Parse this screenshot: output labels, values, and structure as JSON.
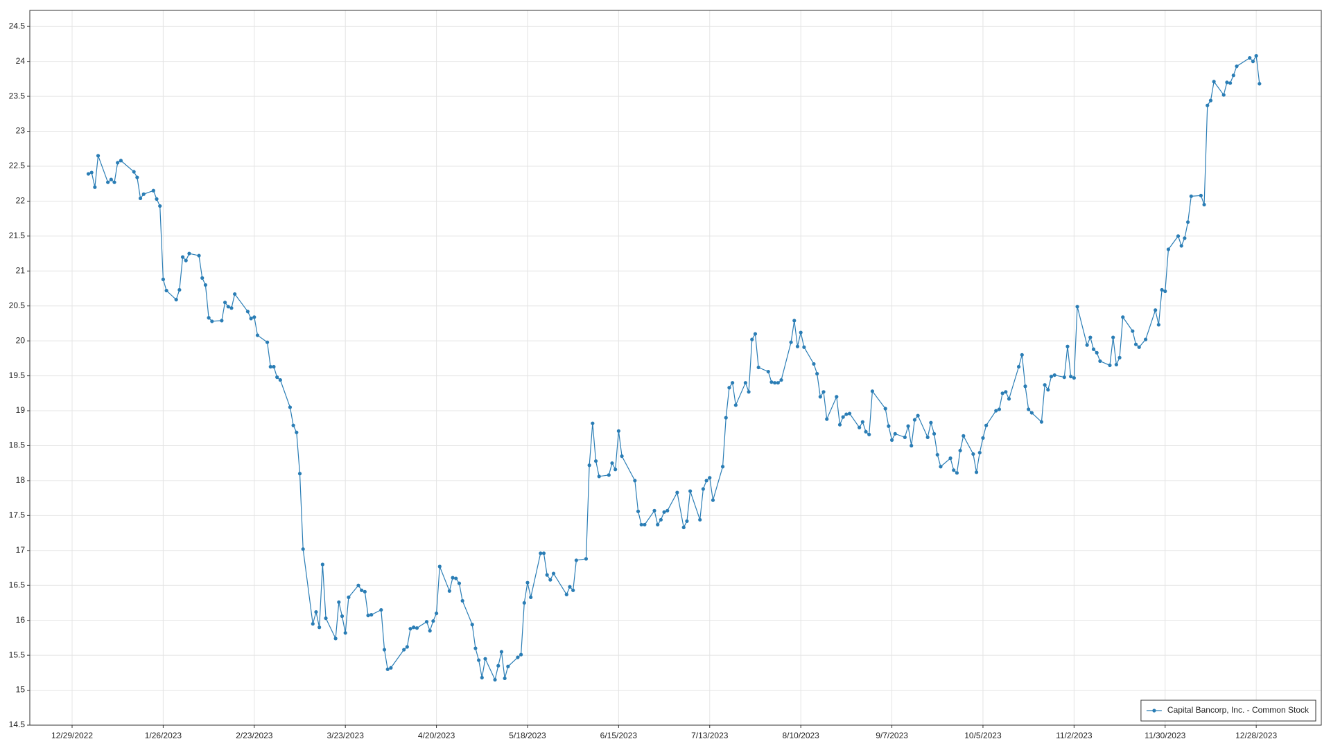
{
  "chart_data": {
    "type": "line",
    "x": [
      "1/3/2023",
      "1/4/2023",
      "1/5/2023",
      "1/6/2023",
      "1/9/2023",
      "1/10/2023",
      "1/11/2023",
      "1/12/2023",
      "1/13/2023",
      "1/17/2023",
      "1/18/2023",
      "1/19/2023",
      "1/20/2023",
      "1/23/2023",
      "1/24/2023",
      "1/25/2023",
      "1/26/2023",
      "1/27/2023",
      "1/30/2023",
      "1/31/2023",
      "2/1/2023",
      "2/2/2023",
      "2/3/2023",
      "2/6/2023",
      "2/7/2023",
      "2/8/2023",
      "2/9/2023",
      "2/10/2023",
      "2/13/2023",
      "2/14/2023",
      "2/15/2023",
      "2/16/2023",
      "2/17/2023",
      "2/21/2023",
      "2/22/2023",
      "2/23/2023",
      "2/24/2023",
      "2/27/2023",
      "2/28/2023",
      "3/1/2023",
      "3/2/2023",
      "3/3/2023",
      "3/6/2023",
      "3/7/2023",
      "3/8/2023",
      "3/9/2023",
      "3/10/2023",
      "3/13/2023",
      "3/14/2023",
      "3/15/2023",
      "3/16/2023",
      "3/17/2023",
      "3/20/2023",
      "3/21/2023",
      "3/22/2023",
      "3/23/2023",
      "3/24/2023",
      "3/27/2023",
      "3/28/2023",
      "3/29/2023",
      "3/30/2023",
      "3/31/2023",
      "4/3/2023",
      "4/4/2023",
      "4/5/2023",
      "4/6/2023",
      "4/10/2023",
      "4/11/2023",
      "4/12/2023",
      "4/13/2023",
      "4/14/2023",
      "4/17/2023",
      "4/18/2023",
      "4/19/2023",
      "4/20/2023",
      "4/21/2023",
      "4/24/2023",
      "4/25/2023",
      "4/26/2023",
      "4/27/2023",
      "4/28/2023",
      "5/1/2023",
      "5/2/2023",
      "5/3/2023",
      "5/4/2023",
      "5/5/2023",
      "5/8/2023",
      "5/9/2023",
      "5/10/2023",
      "5/11/2023",
      "5/12/2023",
      "5/15/2023",
      "5/16/2023",
      "5/17/2023",
      "5/18/2023",
      "5/19/2023",
      "5/22/2023",
      "5/23/2023",
      "5/24/2023",
      "5/25/2023",
      "5/26/2023",
      "5/30/2023",
      "5/31/2023",
      "6/1/2023",
      "6/2/2023",
      "6/5/2023",
      "6/6/2023",
      "6/7/2023",
      "6/8/2023",
      "6/9/2023",
      "6/12/2023",
      "6/13/2023",
      "6/14/2023",
      "6/15/2023",
      "6/16/2023",
      "6/20/2023",
      "6/21/2023",
      "6/22/2023",
      "6/23/2023",
      "6/26/2023",
      "6/27/2023",
      "6/28/2023",
      "6/29/2023",
      "6/30/2023",
      "7/3/2023",
      "7/5/2023",
      "7/6/2023",
      "7/7/2023",
      "7/10/2023",
      "7/11/2023",
      "7/12/2023",
      "7/13/2023",
      "7/14/2023",
      "7/17/2023",
      "7/18/2023",
      "7/19/2023",
      "7/20/2023",
      "7/21/2023",
      "7/24/2023",
      "7/25/2023",
      "7/26/2023",
      "7/27/2023",
      "7/28/2023",
      "7/31/2023",
      "8/1/2023",
      "8/2/2023",
      "8/3/2023",
      "8/4/2023",
      "8/7/2023",
      "8/8/2023",
      "8/9/2023",
      "8/10/2023",
      "8/11/2023",
      "8/14/2023",
      "8/15/2023",
      "8/16/2023",
      "8/17/2023",
      "8/18/2023",
      "8/21/2023",
      "8/22/2023",
      "8/23/2023",
      "8/24/2023",
      "8/25/2023",
      "8/28/2023",
      "8/29/2023",
      "8/30/2023",
      "8/31/2023",
      "9/1/2023",
      "9/5/2023",
      "9/6/2023",
      "9/7/2023",
      "9/8/2023",
      "9/11/2023",
      "9/12/2023",
      "9/13/2023",
      "9/14/2023",
      "9/15/2023",
      "9/18/2023",
      "9/19/2023",
      "9/20/2023",
      "9/21/2023",
      "9/22/2023",
      "9/25/2023",
      "9/26/2023",
      "9/27/2023",
      "9/28/2023",
      "9/29/2023",
      "10/2/2023",
      "10/3/2023",
      "10/4/2023",
      "10/5/2023",
      "10/6/2023",
      "10/9/2023",
      "10/10/2023",
      "10/11/2023",
      "10/12/2023",
      "10/13/2023",
      "10/16/2023",
      "10/17/2023",
      "10/18/2023",
      "10/19/2023",
      "10/20/2023",
      "10/23/2023",
      "10/24/2023",
      "10/25/2023",
      "10/26/2023",
      "10/27/2023",
      "10/30/2023",
      "10/31/2023",
      "11/1/2023",
      "11/2/2023",
      "11/3/2023",
      "11/6/2023",
      "11/7/2023",
      "11/8/2023",
      "11/9/2023",
      "11/10/2023",
      "11/13/2023",
      "11/14/2023",
      "11/15/2023",
      "11/16/2023",
      "11/17/2023",
      "11/20/2023",
      "11/21/2023",
      "11/22/2023",
      "11/24/2023",
      "11/27/2023",
      "11/28/2023",
      "11/29/2023",
      "11/30/2023",
      "12/1/2023",
      "12/4/2023",
      "12/5/2023",
      "12/6/2023",
      "12/7/2023",
      "12/8/2023",
      "12/11/2023",
      "12/12/2023",
      "12/13/2023",
      "12/14/2023",
      "12/15/2023",
      "12/18/2023",
      "12/19/2023",
      "12/20/2023",
      "12/21/2023",
      "12/22/2023",
      "12/26/2023",
      "12/27/2023",
      "12/28/2023",
      "12/29/2023"
    ],
    "series": [
      {
        "name": "Capital Bancorp, Inc. - Common Stock",
        "color": "#2a7db5",
        "values": [
          22.39,
          22.41,
          22.2,
          22.65,
          22.27,
          22.31,
          22.27,
          22.55,
          22.58,
          22.42,
          22.34,
          22.04,
          22.1,
          22.15,
          22.03,
          21.93,
          20.88,
          20.72,
          20.59,
          20.73,
          21.2,
          21.15,
          21.25,
          21.22,
          20.9,
          20.8,
          20.33,
          20.28,
          20.29,
          20.55,
          20.49,
          20.47,
          20.67,
          20.42,
          20.32,
          20.34,
          20.08,
          19.98,
          19.63,
          19.63,
          19.48,
          19.44,
          19.05,
          18.79,
          18.69,
          18.1,
          17.02,
          15.95,
          16.12,
          15.9,
          16.8,
          16.03,
          15.74,
          16.26,
          16.06,
          15.82,
          16.33,
          16.5,
          16.43,
          16.41,
          16.07,
          16.08,
          16.15,
          15.58,
          15.3,
          15.32,
          15.58,
          15.62,
          15.88,
          15.9,
          15.89,
          15.98,
          15.85,
          15.99,
          16.1,
          16.77,
          16.42,
          16.61,
          16.6,
          16.53,
          16.28,
          15.94,
          15.6,
          15.43,
          15.18,
          15.45,
          15.15,
          15.35,
          15.55,
          15.17,
          15.34,
          15.47,
          15.51,
          16.25,
          16.54,
          16.33,
          16.96,
          16.96,
          16.65,
          16.58,
          16.67,
          16.37,
          16.48,
          16.43,
          16.86,
          16.88,
          18.22,
          18.82,
          18.28,
          18.06,
          18.08,
          18.25,
          18.16,
          18.71,
          18.35,
          18.0,
          17.56,
          17.37,
          17.37,
          17.57,
          17.37,
          17.44,
          17.55,
          17.57,
          17.83,
          17.33,
          17.42,
          17.85,
          17.44,
          17.88,
          18.0,
          18.04,
          17.72,
          18.2,
          18.9,
          19.33,
          19.4,
          19.08,
          19.4,
          19.27,
          20.02,
          20.1,
          19.62,
          19.56,
          19.41,
          19.4,
          19.4,
          19.44,
          19.98,
          20.29,
          19.92,
          20.12,
          19.91,
          19.67,
          19.53,
          19.2,
          19.27,
          18.88,
          19.2,
          18.8,
          18.91,
          18.95,
          18.96,
          18.76,
          18.84,
          18.7,
          18.66,
          19.28,
          19.03,
          18.78,
          18.58,
          18.67,
          18.62,
          18.78,
          18.5,
          18.87,
          18.93,
          18.62,
          18.83,
          18.67,
          18.37,
          18.2,
          18.32,
          18.15,
          18.11,
          18.43,
          18.64,
          18.38,
          18.12,
          18.4,
          18.61,
          18.79,
          19.0,
          19.02,
          19.25,
          19.27,
          19.17,
          19.63,
          19.8,
          19.35,
          19.02,
          18.97,
          18.84,
          19.37,
          19.3,
          19.49,
          19.51,
          19.48,
          19.92,
          19.49,
          19.47,
          20.49,
          19.94,
          20.05,
          19.88,
          19.83,
          19.71,
          19.65,
          20.05,
          19.66,
          19.76,
          20.34,
          20.14,
          19.95,
          19.91,
          20.02,
          20.44,
          20.23,
          20.73,
          20.71,
          21.31,
          21.5,
          21.36,
          21.47,
          21.7,
          22.07,
          22.08,
          21.95,
          23.37,
          23.44,
          23.71,
          23.52,
          23.7,
          23.69,
          23.8,
          23.93,
          24.05,
          24.0,
          24.08,
          23.68
        ]
      }
    ],
    "xlim": [
      "12/16/2022",
      "1/17/2024"
    ],
    "xticks": [
      "12/29/2022",
      "1/26/2023",
      "2/23/2023",
      "3/23/2023",
      "4/20/2023",
      "5/18/2023",
      "6/15/2023",
      "7/13/2023",
      "8/10/2023",
      "9/7/2023",
      "10/5/2023",
      "11/2/2023",
      "11/30/2023",
      "12/28/2023"
    ],
    "ylim": [
      14.5,
      24.73
    ],
    "yticks": [
      14.5,
      15,
      15.5,
      16,
      16.5,
      17,
      17.5,
      18,
      18.5,
      19,
      19.5,
      20,
      20.5,
      21,
      21.5,
      22,
      22.5,
      23,
      23.5,
      24,
      24.5
    ],
    "grid": true,
    "legend": "lower right"
  }
}
